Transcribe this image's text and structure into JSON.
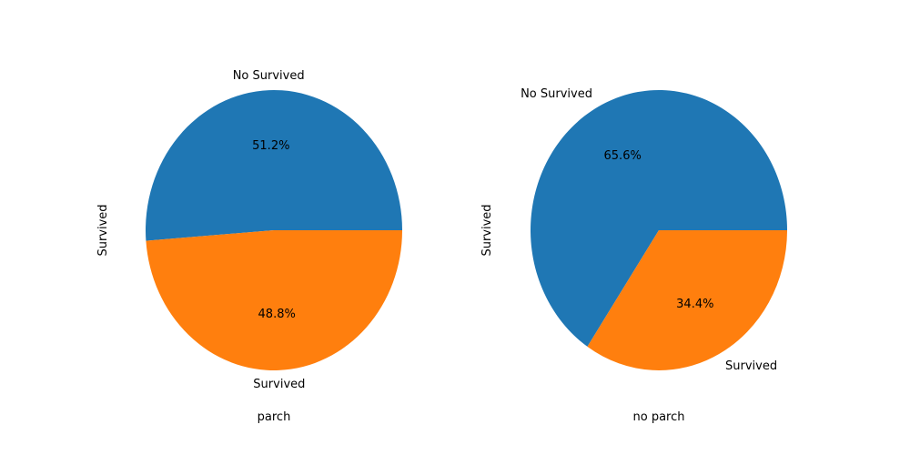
{
  "chart_data": [
    {
      "type": "pie",
      "title": "",
      "xlabel": "parch",
      "ylabel": "Survived",
      "categories": [
        "No Survived",
        "Survived"
      ],
      "values": [
        51.2,
        48.8
      ],
      "value_labels": [
        "51.2%",
        "48.8%"
      ],
      "colors": [
        "#1f77b4",
        "#ff7f0e"
      ],
      "start_angle_deg": 0,
      "direction": "counterclockwise"
    },
    {
      "type": "pie",
      "title": "",
      "xlabel": "no parch",
      "ylabel": "Survived",
      "categories": [
        "No Survived",
        "Survived"
      ],
      "values": [
        65.6,
        34.4
      ],
      "value_labels": [
        "65.6%",
        "34.4%"
      ],
      "colors": [
        "#1f77b4",
        "#ff7f0e"
      ],
      "start_angle_deg": 0,
      "direction": "counterclockwise"
    }
  ]
}
